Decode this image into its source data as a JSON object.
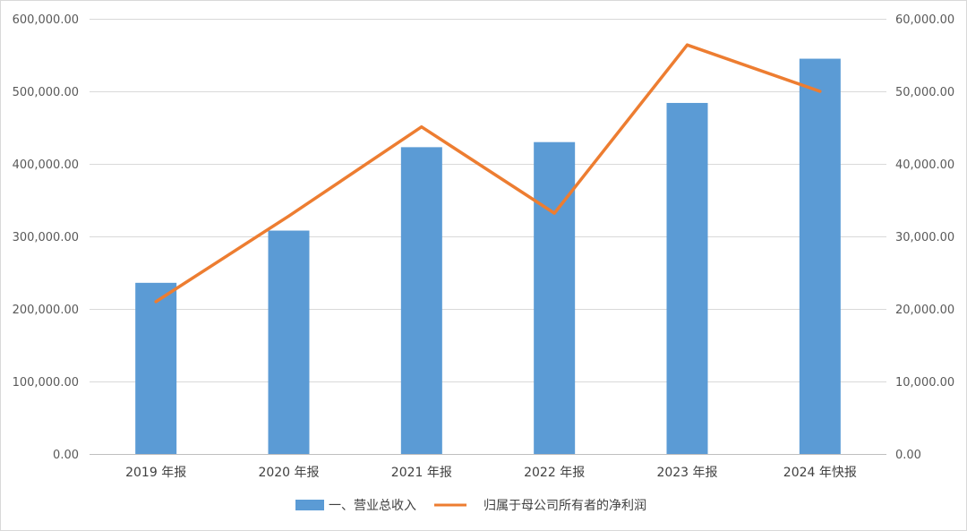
{
  "chart_data": {
    "type": "bar",
    "categories": [
      "2019 年报",
      "2020 年报",
      "2021 年报",
      "2022 年报",
      "2023 年报",
      "2024 年快报"
    ],
    "series": [
      {
        "name": "一、营业总收入",
        "type": "bar",
        "axis": "left",
        "color": "#5b9bd5",
        "values": [
          236000,
          308000,
          423000,
          430000,
          484000,
          545000
        ]
      },
      {
        "name": "归属于母公司所有者的净利润",
        "type": "line",
        "axis": "right",
        "color": "#ed7d31",
        "values": [
          21000,
          32800,
          45100,
          33200,
          56400,
          50000
        ]
      }
    ],
    "y_left": {
      "lim": [
        0,
        600000
      ],
      "ticks": [
        0,
        100000,
        200000,
        300000,
        400000,
        500000,
        600000
      ],
      "tick_labels": [
        "0.00",
        "100,000.00",
        "200,000.00",
        "300,000.00",
        "400,000.00",
        "500,000.00",
        "600,000.00"
      ]
    },
    "y_right": {
      "lim": [
        0,
        60000
      ],
      "ticks": [
        0,
        10000,
        20000,
        30000,
        40000,
        50000,
        60000
      ],
      "tick_labels": [
        "0.00",
        "10,000.00",
        "20,000.00",
        "30,000.00",
        "40,000.00",
        "50,000.00",
        "60,000.00"
      ]
    },
    "grid": true,
    "legend": "bottom-center"
  }
}
